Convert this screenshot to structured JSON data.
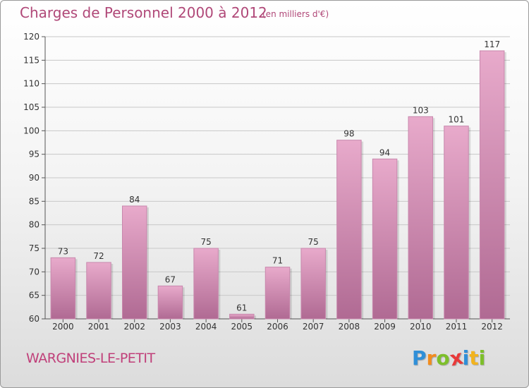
{
  "header": {
    "title": "Charges de Personnel 2000 à 2012",
    "subtitle": "(en milliers d'€)"
  },
  "footer": {
    "commune": "WARGNIES-LE-PETIT",
    "logo_letters": [
      "P",
      "r",
      "o",
      "x",
      "i",
      "t",
      "i"
    ],
    "logo_colors": [
      "#2f8fd8",
      "#f28c1e",
      "#7dbf2a",
      "#e83a3a",
      "#2f8fd8",
      "#f2b31e",
      "#7dbf2a"
    ]
  },
  "colors": {
    "bar_top": "#e8aacb",
    "bar_bottom": "#b06a93",
    "text": "#b04878"
  },
  "chart_data": {
    "type": "bar",
    "title": "Charges de Personnel 2000 à 2012",
    "subtitle": "(en milliers d'€)",
    "categories": [
      "2000",
      "2001",
      "2002",
      "2003",
      "2004",
      "2005",
      "2006",
      "2007",
      "2008",
      "2009",
      "2010",
      "2011",
      "2012"
    ],
    "values": [
      73,
      72,
      84,
      67,
      75,
      61,
      71,
      75,
      98,
      94,
      103,
      101,
      117
    ],
    "ylim": [
      60,
      120
    ],
    "yticks": [
      60,
      65,
      70,
      75,
      80,
      85,
      90,
      95,
      100,
      105,
      110,
      115,
      120
    ],
    "grid": true
  }
}
